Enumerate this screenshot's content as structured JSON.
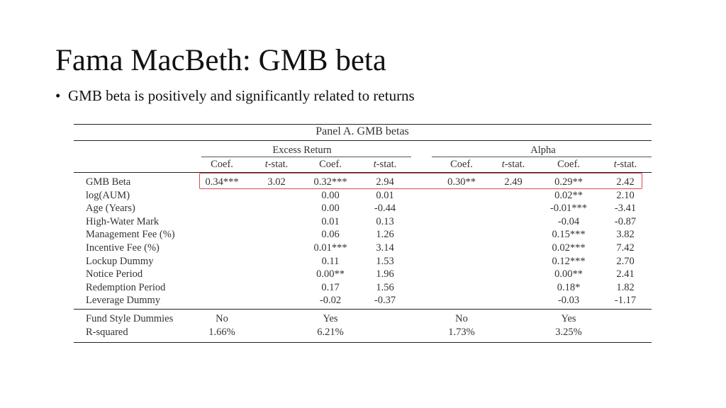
{
  "title": "Fama MacBeth: GMB beta",
  "bullet": "GMB beta is positively and significantly related to returns",
  "table": {
    "panel_title": "Panel A. GMB betas",
    "group_headers": [
      "Excess Return",
      "Alpha"
    ],
    "column_headers": [
      "Coef.",
      "t-stat.",
      "Coef.",
      "t-stat.",
      "Coef.",
      "t-stat.",
      "Coef.",
      "t-stat."
    ],
    "rows": [
      {
        "label": "GMB Beta",
        "values": [
          "0.34***",
          "3.02",
          "0.32***",
          "2.94",
          "0.30**",
          "2.49",
          "0.29**",
          "2.42"
        ]
      },
      {
        "label": "log(AUM)",
        "values": [
          "",
          "",
          "0.00",
          "0.01",
          "",
          "",
          "0.02**",
          "2.10"
        ]
      },
      {
        "label": "Age (Years)",
        "values": [
          "",
          "",
          "0.00",
          "-0.44",
          "",
          "",
          "-0.01***",
          "-3.41"
        ]
      },
      {
        "label": "High-Water Mark",
        "values": [
          "",
          "",
          "0.01",
          "0.13",
          "",
          "",
          "-0.04",
          "-0.87"
        ]
      },
      {
        "label": "Management Fee (%)",
        "values": [
          "",
          "",
          "0.06",
          "1.26",
          "",
          "",
          "0.15***",
          "3.82"
        ]
      },
      {
        "label": "Incentive Fee (%)",
        "values": [
          "",
          "",
          "0.01***",
          "3.14",
          "",
          "",
          "0.02***",
          "7.42"
        ]
      },
      {
        "label": "Lockup Dummy",
        "values": [
          "",
          "",
          "0.11",
          "1.53",
          "",
          "",
          "0.12***",
          "2.70"
        ]
      },
      {
        "label": "Notice Period",
        "values": [
          "",
          "",
          "0.00**",
          "1.96",
          "",
          "",
          "0.00**",
          "2.41"
        ]
      },
      {
        "label": "Redemption Period",
        "values": [
          "",
          "",
          "0.17",
          "1.56",
          "",
          "",
          "0.18*",
          "1.82"
        ]
      },
      {
        "label": "Leverage Dummy",
        "values": [
          "",
          "",
          "-0.02",
          "-0.37",
          "",
          "",
          "-0.03",
          "-1.17"
        ]
      }
    ],
    "footer_rows": [
      {
        "label": "Fund Style Dummies",
        "values": [
          "No",
          "Yes",
          "No",
          "Yes"
        ]
      },
      {
        "label": "R-squared",
        "values": [
          "1.66%",
          "6.21%",
          "1.73%",
          "3.25%"
        ]
      }
    ],
    "highlight_color": "#e0484d"
  }
}
